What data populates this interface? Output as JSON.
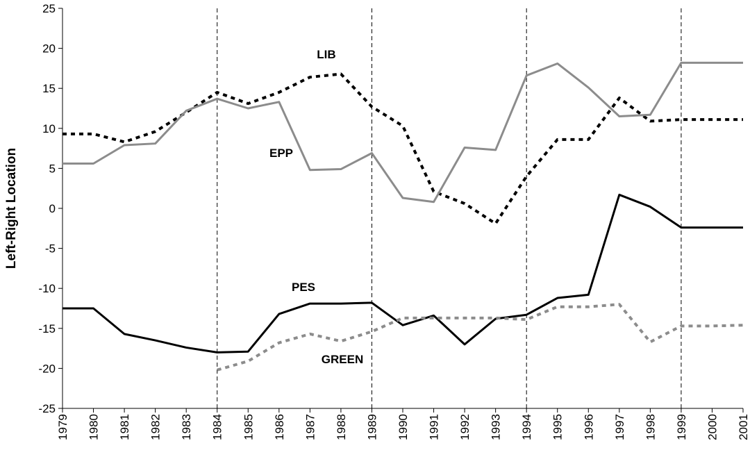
{
  "chart_data": {
    "type": "line",
    "y_label": "Left-Right Location",
    "x": [
      1979,
      1980,
      1981,
      1982,
      1983,
      1984,
      1985,
      1986,
      1987,
      1988,
      1989,
      1990,
      1991,
      1992,
      1993,
      1994,
      1995,
      1996,
      1997,
      1998,
      1999,
      2000,
      2001
    ],
    "xlim": [
      1979,
      2001
    ],
    "xticks": [
      1979,
      1980,
      1981,
      1982,
      1983,
      1984,
      1985,
      1986,
      1987,
      1988,
      1989,
      1990,
      1991,
      1992,
      1993,
      1994,
      1995,
      1996,
      1997,
      1998,
      1999,
      2000,
      2001
    ],
    "ylim": [
      -25,
      25
    ],
    "yticks": [
      -25,
      -20,
      -15,
      -10,
      -5,
      0,
      5,
      10,
      15,
      20,
      25
    ],
    "vlines": [
      1984,
      1989,
      1994,
      1999
    ],
    "series": [
      {
        "name": "LIB",
        "color": "#000000",
        "dashed": true,
        "values": [
          9.3,
          9.3,
          8.3,
          9.6,
          12.0,
          14.5,
          13.1,
          14.5,
          16.4,
          16.8,
          12.7,
          10.3,
          2.1,
          0.6,
          -1.9,
          4.0,
          8.6,
          8.6,
          13.8,
          10.9,
          11.1,
          11.1,
          11.1
        ]
      },
      {
        "name": "EPP",
        "color": "#8c8c8c",
        "dashed": false,
        "values": [
          5.6,
          5.6,
          7.9,
          8.1,
          12.2,
          13.7,
          12.5,
          13.3,
          4.8,
          4.9,
          6.9,
          1.3,
          0.8,
          7.6,
          7.3,
          16.6,
          18.1,
          15.1,
          11.5,
          11.7,
          18.2,
          18.2,
          18.2
        ]
      },
      {
        "name": "PES",
        "color": "#000000",
        "dashed": false,
        "values": [
          -12.5,
          -12.5,
          -15.7,
          -16.5,
          -17.4,
          -18.0,
          -17.9,
          -13.2,
          -11.9,
          -11.9,
          -11.8,
          -14.6,
          -13.4,
          -17.0,
          -13.8,
          -13.3,
          -11.2,
          -10.8,
          1.7,
          0.2,
          -2.4,
          -2.4,
          -2.4
        ]
      },
      {
        "name": "GREEN",
        "color": "#8c8c8c",
        "dashed": true,
        "values": [
          null,
          null,
          null,
          null,
          null,
          -20.2,
          -19.1,
          -16.8,
          -15.7,
          -16.6,
          -15.4,
          -13.7,
          -13.7,
          -13.7,
          -13.7,
          -13.9,
          -12.3,
          -12.3,
          -12.0,
          -16.7,
          -14.7,
          -14.7,
          -14.6
        ]
      }
    ]
  }
}
